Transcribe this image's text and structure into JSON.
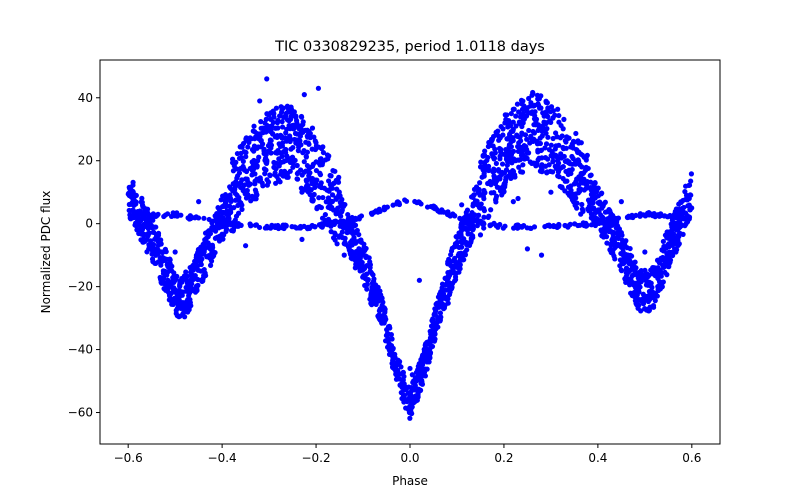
{
  "chart_data": {
    "type": "scatter",
    "title": "TIC 0330829235, period 1.0118 days",
    "xlabel": "Phase",
    "ylabel": "Normalized PDC flux",
    "xlim": [
      -0.66,
      0.66
    ],
    "ylim": [
      -70,
      52
    ],
    "xticks": [
      -0.6,
      -0.4,
      -0.2,
      0.0,
      0.2,
      0.4,
      0.6
    ],
    "xtick_labels": [
      "−0.6",
      "−0.4",
      "−0.2",
      "0.0",
      "0.2",
      "0.4",
      "0.6"
    ],
    "yticks": [
      -60,
      -40,
      -20,
      0,
      20,
      40
    ],
    "ytick_labels": [
      "−60",
      "−40",
      "−20",
      "0",
      "20",
      "40"
    ],
    "grid": false,
    "legend": "none",
    "series_color": "#0000ff",
    "profile": [
      [
        -0.6,
        10
      ],
      [
        -0.58,
        4
      ],
      [
        -0.55,
        -5
      ],
      [
        -0.52,
        -15
      ],
      [
        -0.49,
        -25
      ],
      [
        -0.46,
        -18
      ],
      [
        -0.42,
        -5
      ],
      [
        -0.38,
        8
      ],
      [
        -0.34,
        18
      ],
      [
        -0.3,
        24
      ],
      [
        -0.26,
        26
      ],
      [
        -0.22,
        22
      ],
      [
        -0.18,
        12
      ],
      [
        -0.14,
        0
      ],
      [
        -0.1,
        -12
      ],
      [
        -0.06,
        -28
      ],
      [
        -0.03,
        -45
      ],
      [
        0.0,
        -58
      ],
      [
        0.03,
        -45
      ],
      [
        0.06,
        -28
      ],
      [
        0.1,
        -10
      ],
      [
        0.14,
        5
      ],
      [
        0.18,
        18
      ],
      [
        0.22,
        26
      ],
      [
        0.26,
        30
      ],
      [
        0.3,
        27
      ],
      [
        0.34,
        20
      ],
      [
        0.38,
        10
      ],
      [
        0.42,
        0
      ],
      [
        0.46,
        -12
      ],
      [
        0.49,
        -22
      ],
      [
        0.52,
        -20
      ],
      [
        0.55,
        -8
      ],
      [
        0.58,
        3
      ],
      [
        0.6,
        10
      ]
    ],
    "baseline_profile": [
      [
        -0.6,
        2
      ],
      [
        -0.5,
        3
      ],
      [
        -0.4,
        0
      ],
      [
        -0.3,
        -1
      ],
      [
        -0.2,
        -1
      ],
      [
        -0.1,
        2
      ],
      [
        0.0,
        8
      ],
      [
        0.1,
        2
      ],
      [
        0.2,
        -1
      ],
      [
        0.3,
        -1
      ],
      [
        0.4,
        0
      ],
      [
        0.5,
        3
      ],
      [
        0.6,
        2
      ]
    ],
    "outliers": [
      [
        -0.305,
        46
      ],
      [
        -0.32,
        39
      ],
      [
        -0.195,
        43
      ],
      [
        -0.225,
        41
      ],
      [
        0.0,
        -46
      ],
      [
        0.02,
        -49
      ],
      [
        0.005,
        -48
      ],
      [
        -0.23,
        10
      ],
      [
        0.23,
        8
      ],
      [
        0.3,
        10
      ],
      [
        -0.28,
        14
      ],
      [
        0.22,
        7
      ],
      [
        0.25,
        -8
      ],
      [
        0.28,
        -10
      ],
      [
        -0.35,
        -7
      ],
      [
        -0.23,
        -5
      ],
      [
        -0.14,
        -10
      ],
      [
        -0.12,
        -11
      ],
      [
        -0.45,
        7
      ],
      [
        0.45,
        7
      ],
      [
        0.02,
        -18
      ],
      [
        -0.5,
        -9
      ],
      [
        0.5,
        -9
      ],
      [
        0.11,
        6
      ]
    ]
  }
}
